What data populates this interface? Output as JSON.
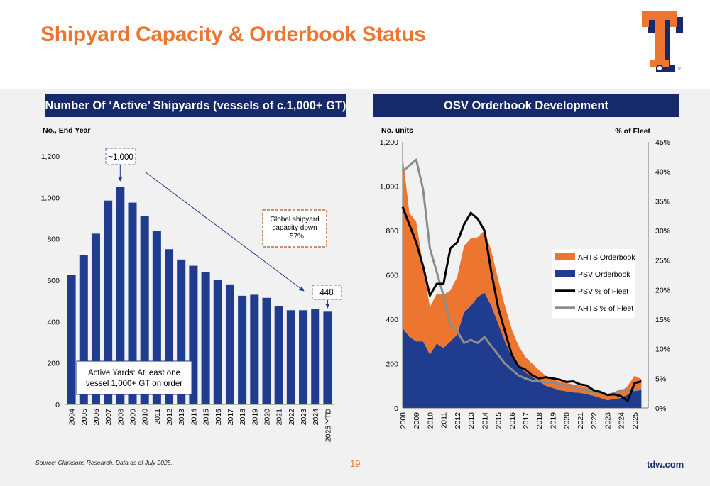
{
  "page": {
    "title": "Shipyard Capacity & Orderbook Status",
    "source": "Source: Clarksons Research. Data as of July 2025.",
    "page_number": "19",
    "website": "tdw.com",
    "colors": {
      "orange": "#ec7630",
      "navy": "#16296b",
      "bar_blue": "#1f3c8f"
    }
  },
  "chart_data": [
    {
      "type": "bar",
      "title": "Number Of ‘Active’ Shipyards (vessels of c.1,000+ GT)",
      "ylabel": "No., End Year",
      "ylim": [
        0,
        1200
      ],
      "yticks": [
        "0",
        "200",
        "400",
        "600",
        "800",
        "1,000",
        "1,200"
      ],
      "categories": [
        "2004",
        "2005",
        "2006",
        "2007",
        "2008",
        "2009",
        "2010",
        "2011",
        "2012",
        "2013",
        "2014",
        "2015",
        "2016",
        "2017",
        "2018",
        "2019",
        "2020",
        "2021",
        "2022",
        "2023",
        "2024",
        "2025 YTD"
      ],
      "values": [
        625,
        720,
        825,
        985,
        1050,
        975,
        910,
        840,
        750,
        700,
        670,
        640,
        600,
        580,
        525,
        530,
        515,
        475,
        455,
        455,
        462,
        448
      ],
      "annotations": {
        "peak": "~1,000",
        "latest": "448",
        "capacity_note": "Global shipyard capacity down ~57%",
        "active_note": "Active Yards: At least one vessel 1,000+ GT on order"
      }
    },
    {
      "type": "area",
      "title": "OSV Orderbook Development",
      "ylabel": "No. units",
      "y2label": "% of Fleet",
      "ylim": [
        0,
        1200
      ],
      "y2lim": [
        0,
        45
      ],
      "yticks": [
        "0",
        "200",
        "400",
        "600",
        "800",
        "1,000",
        "1,200"
      ],
      "y2ticks": [
        "0%",
        "5%",
        "10%",
        "15%",
        "20%",
        "25%",
        "30%",
        "35%",
        "40%",
        "45%"
      ],
      "x_labels": [
        "2008",
        "2009",
        "2010",
        "2011",
        "2012",
        "2013",
        "2014",
        "2015",
        "2016",
        "2017",
        "2018",
        "2019",
        "2020",
        "2021",
        "2022",
        "2023",
        "2024",
        "2025"
      ],
      "x": [
        2008.0,
        2008.5,
        2009.0,
        2009.5,
        2010.0,
        2010.5,
        2011.0,
        2011.5,
        2012.0,
        2012.5,
        2013.0,
        2013.5,
        2014.0,
        2014.5,
        2015.0,
        2015.5,
        2016.0,
        2016.5,
        2017.0,
        2017.5,
        2018.0,
        2018.5,
        2019.0,
        2019.5,
        2020.0,
        2020.5,
        2021.0,
        2021.5,
        2022.0,
        2022.5,
        2023.0,
        2023.5,
        2024.0,
        2024.5,
        2025.0,
        2025.5
      ],
      "series": [
        {
          "name": "AHTS Orderbook",
          "kind": "area",
          "axis": "left",
          "color": "#ec7630",
          "values": [
            780,
            560,
            540,
            340,
            215,
            225,
            240,
            230,
            260,
            300,
            305,
            270,
            280,
            250,
            200,
            160,
            125,
            90,
            70,
            60,
            50,
            45,
            40,
            40,
            38,
            36,
            33,
            32,
            30,
            28,
            25,
            25,
            28,
            40,
            65,
            50
          ]
        },
        {
          "name": "PSV Orderbook",
          "kind": "area",
          "axis": "left",
          "color": "#1f3c8f",
          "values": [
            360,
            320,
            300,
            300,
            240,
            290,
            270,
            300,
            330,
            430,
            460,
            500,
            520,
            460,
            380,
            300,
            230,
            190,
            160,
            140,
            120,
            100,
            90,
            80,
            75,
            70,
            68,
            62,
            55,
            45,
            35,
            40,
            45,
            60,
            80,
            80
          ]
        },
        {
          "name": "PSV % of Fleet",
          "kind": "line",
          "axis": "right",
          "color": "#000000",
          "values": [
            34,
            31,
            28,
            24,
            19,
            21,
            21,
            27,
            28,
            31,
            33,
            32,
            30,
            23,
            17,
            13,
            9,
            7,
            6.5,
            5.5,
            5,
            5.2,
            5,
            4.8,
            4.4,
            4.5,
            4,
            3.8,
            3,
            2.7,
            2.2,
            2.3,
            2,
            1.2,
            4.2,
            4.5
          ]
        },
        {
          "name": "AHTS % of Fleet",
          "kind": "line",
          "axis": "right",
          "color": "#8c8c8c",
          "values": [
            40,
            41,
            42,
            37,
            27,
            23,
            19,
            14,
            13,
            11,
            11.5,
            11,
            12,
            10.5,
            9,
            7.5,
            6.5,
            5.5,
            5,
            4.6,
            4.5,
            4.3,
            4.3,
            4,
            3.8,
            3.5,
            3.2,
            3,
            2.7,
            2.5,
            2.2,
            2.5,
            3,
            3,
            3,
            3.2
          ]
        }
      ],
      "legend": "center-right"
    }
  ]
}
